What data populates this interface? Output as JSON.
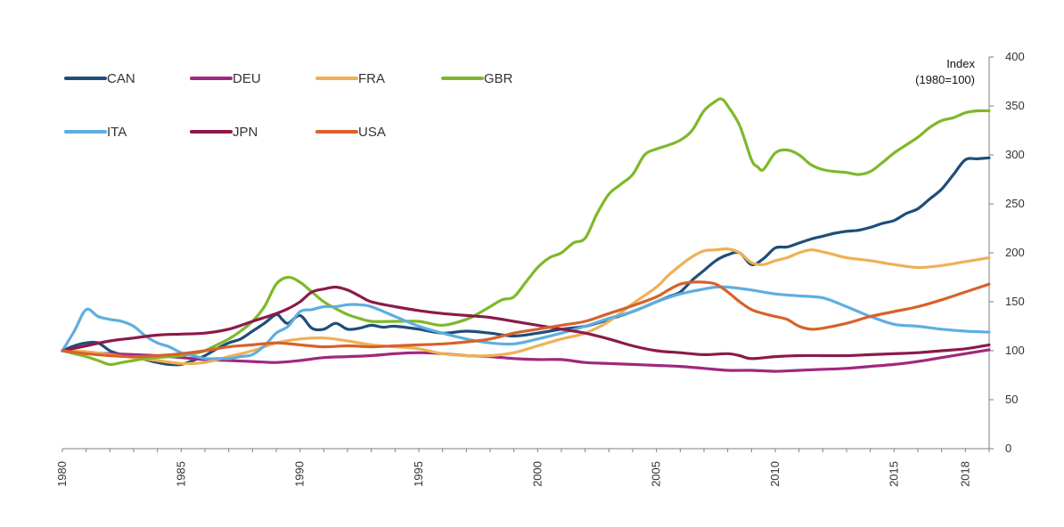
{
  "chart_data": {
    "type": "line",
    "title": "",
    "xlabel": "",
    "ylabel": [
      "Index",
      "(1980=100)"
    ],
    "xlim": [
      1980,
      2019
    ],
    "ylim": [
      0,
      400
    ],
    "yticks": [
      0,
      50,
      100,
      150,
      200,
      250,
      300,
      350,
      400
    ],
    "xticks": [
      "1980",
      "1985",
      "1990",
      "1995",
      "2000",
      "2005",
      "2010",
      "2015",
      "2018"
    ],
    "grid": false,
    "legend_position": "top-left",
    "series": [
      {
        "name": "CAN",
        "color": "#1f4e79",
        "x": [
          1980,
          1980.5,
          1981,
          1981.5,
          1982,
          1982.5,
          1983,
          1983.5,
          1984,
          1984.5,
          1985,
          1985.5,
          1986,
          1986.5,
          1987,
          1987.5,
          1988,
          1988.5,
          1989,
          1989.25,
          1989.5,
          1990,
          1990.5,
          1991,
          1991.5,
          1992,
          1992.5,
          1993,
          1993.5,
          1994,
          1995,
          1996,
          1997,
          1998,
          1999,
          2000,
          2001,
          2002,
          2003,
          2004,
          2005,
          2005.5,
          2006,
          2006.5,
          2007,
          2007.5,
          2008,
          2008.5,
          2009,
          2009.5,
          2010,
          2010.5,
          2011,
          2011.5,
          2012,
          2012.5,
          2013,
          2013.5,
          2014,
          2014.5,
          2015,
          2015.5,
          2016,
          2016.5,
          2017,
          2017.5,
          2018,
          2018.5,
          2019
        ],
        "y": [
          100,
          105,
          108,
          108,
          100,
          96,
          94,
          91,
          88,
          86,
          86,
          90,
          95,
          102,
          108,
          112,
          120,
          128,
          137,
          132,
          128,
          136,
          123,
          122,
          128,
          122,
          123,
          126,
          124,
          125,
          122,
          118,
          120,
          118,
          115,
          118,
          122,
          125,
          132,
          140,
          150,
          155,
          160,
          172,
          182,
          192,
          198,
          200,
          188,
          194,
          205,
          206,
          210,
          214,
          217,
          220,
          222,
          223,
          226,
          230,
          233,
          240,
          245,
          255,
          265,
          280,
          295,
          296,
          297
        ]
      },
      {
        "name": "DEU",
        "color": "#a0287d",
        "x": [
          1980,
          1981,
          1982,
          1983,
          1984,
          1985,
          1986,
          1987,
          1988,
          1989,
          1990,
          1991,
          1992,
          1993,
          1994,
          1995,
          1996,
          1997,
          1998,
          1999,
          2000,
          2001,
          2002,
          2003,
          2004,
          2005,
          2006,
          2007,
          2008,
          2009,
          2010,
          2011,
          2012,
          2013,
          2014,
          2015,
          2016,
          2017,
          2018,
          2019
        ],
        "y": [
          100,
          98,
          97,
          96,
          95,
          93,
          91,
          90,
          89,
          88,
          90,
          93,
          94,
          95,
          97,
          98,
          97,
          95,
          94,
          92,
          91,
          91,
          88,
          87,
          86,
          85,
          84,
          82,
          80,
          80,
          79,
          80,
          81,
          82,
          84,
          86,
          89,
          93,
          97,
          101
        ]
      },
      {
        "name": "FRA",
        "color": "#eeb155",
        "x": [
          1980,
          1981,
          1982,
          1983,
          1984,
          1985,
          1986,
          1987,
          1988,
          1989,
          1990,
          1991,
          1992,
          1993,
          1994,
          1995,
          1996,
          1997,
          1998,
          1999,
          2000,
          2001,
          2002,
          2003,
          2004,
          2005,
          2005.5,
          2006,
          2006.5,
          2007,
          2007.5,
          2008,
          2008.5,
          2009,
          2009.5,
          2010,
          2010.5,
          2011,
          2011.5,
          2012,
          2012.5,
          2013,
          2014,
          2015,
          2016,
          2017,
          2018,
          2019
        ],
        "y": [
          100,
          99,
          96,
          93,
          90,
          87,
          88,
          94,
          100,
          108,
          112,
          113,
          110,
          106,
          104,
          102,
          97,
          95,
          95,
          98,
          105,
          112,
          118,
          130,
          148,
          165,
          177,
          187,
          196,
          202,
          203,
          204,
          200,
          190,
          188,
          192,
          195,
          200,
          203,
          201,
          198,
          195,
          192,
          188,
          185,
          187,
          191,
          195
        ]
      },
      {
        "name": "GBR",
        "color": "#7fb82a",
        "x": [
          1980,
          1980.5,
          1981,
          1981.5,
          1982,
          1982.5,
          1983,
          1983.5,
          1984,
          1984.5,
          1985,
          1985.5,
          1986,
          1986.5,
          1987,
          1987.5,
          1988,
          1988.5,
          1989,
          1989.5,
          1990,
          1990.5,
          1991,
          1991.5,
          1992,
          1992.5,
          1993,
          1994,
          1995,
          1996,
          1997,
          1997.5,
          1998,
          1998.5,
          1999,
          1999.5,
          2000,
          2000.5,
          2001,
          2001.5,
          2002,
          2002.5,
          2003,
          2003.5,
          2004,
          2004.5,
          2005,
          2005.5,
          2006,
          2006.5,
          2007,
          2007.5,
          2007.75,
          2008,
          2008.5,
          2009,
          2009.25,
          2009.5,
          2010,
          2010.5,
          2011,
          2011.5,
          2012,
          2012.5,
          2013,
          2013.5,
          2014,
          2014.5,
          2015,
          2015.5,
          2016,
          2016.5,
          2017,
          2017.5,
          2018,
          2018.5,
          2019
        ],
        "y": [
          100,
          97,
          94,
          90,
          86,
          88,
          90,
          92,
          93,
          94,
          95,
          97,
          100,
          106,
          112,
          120,
          130,
          145,
          168,
          175,
          170,
          160,
          150,
          143,
          137,
          133,
          130,
          130,
          130,
          126,
          132,
          138,
          145,
          152,
          155,
          170,
          185,
          195,
          200,
          210,
          215,
          240,
          260,
          270,
          280,
          300,
          306,
          310,
          315,
          325,
          345,
          355,
          357,
          350,
          330,
          295,
          288,
          285,
          302,
          305,
          300,
          290,
          285,
          283,
          282,
          280,
          283,
          292,
          302,
          310,
          318,
          328,
          335,
          338,
          343,
          345,
          345
        ]
      },
      {
        "name": "ITA",
        "color": "#5eaee0",
        "x": [
          1980,
          1980.5,
          1981,
          1981.5,
          1982,
          1982.5,
          1983,
          1983.5,
          1984,
          1984.5,
          1985,
          1985.5,
          1986,
          1986.5,
          1987,
          1987.5,
          1988,
          1988.5,
          1989,
          1989.5,
          1990,
          1990.5,
          1991,
          1991.5,
          1992,
          1992.5,
          1993,
          1994,
          1995,
          1996,
          1997,
          1998,
          1999,
          2000,
          2001,
          2002,
          2003,
          2004,
          2005,
          2006,
          2007,
          2007.5,
          2008,
          2009,
          2010,
          2011,
          2012,
          2013,
          2014,
          2015,
          2016,
          2017,
          2018,
          2019
        ],
        "y": [
          100,
          120,
          142,
          135,
          132,
          130,
          125,
          115,
          108,
          104,
          98,
          95,
          92,
          92,
          92,
          94,
          96,
          105,
          118,
          125,
          140,
          142,
          145,
          145,
          147,
          147,
          145,
          135,
          125,
          118,
          112,
          108,
          107,
          112,
          118,
          125,
          133,
          140,
          150,
          158,
          163,
          165,
          165,
          162,
          158,
          156,
          154,
          145,
          135,
          127,
          125,
          122,
          120,
          119
        ]
      },
      {
        "name": "JPN",
        "color": "#8b1a4a",
        "x": [
          1980,
          1981,
          1982,
          1983,
          1984,
          1985,
          1986,
          1987,
          1988,
          1989,
          1989.5,
          1990,
          1990.5,
          1991,
          1991.5,
          1992,
          1992.5,
          1993,
          1994,
          1995,
          1996,
          1997,
          1998,
          1999,
          2000,
          2001,
          2002,
          2003,
          2004,
          2005,
          2006,
          2007,
          2008,
          2008.5,
          2009,
          2010,
          2011,
          2012,
          2013,
          2014,
          2015,
          2016,
          2017,
          2018,
          2019
        ],
        "y": [
          100,
          105,
          110,
          113,
          116,
          117,
          118,
          122,
          130,
          138,
          143,
          150,
          160,
          163,
          165,
          162,
          156,
          150,
          145,
          141,
          138,
          136,
          134,
          130,
          126,
          122,
          118,
          112,
          105,
          100,
          98,
          96,
          97,
          95,
          92,
          94,
          95,
          95,
          95,
          96,
          97,
          98,
          100,
          102,
          106
        ]
      },
      {
        "name": "USA",
        "color": "#d8612a",
        "x": [
          1980,
          1981,
          1982,
          1983,
          1984,
          1985,
          1986,
          1987,
          1988,
          1989,
          1990,
          1991,
          1992,
          1993,
          1994,
          1995,
          1996,
          1997,
          1998,
          1999,
          2000,
          2001,
          2002,
          2003,
          2004,
          2005,
          2005.5,
          2006,
          2006.5,
          2007,
          2007.5,
          2008,
          2008.5,
          2009,
          2009.5,
          2010,
          2010.5,
          2011,
          2011.5,
          2012,
          2013,
          2014,
          2015,
          2016,
          2017,
          2018,
          2019
        ],
        "y": [
          100,
          97,
          95,
          94,
          95,
          97,
          100,
          104,
          106,
          108,
          106,
          104,
          105,
          104,
          105,
          106,
          107,
          109,
          112,
          118,
          122,
          126,
          130,
          138,
          146,
          155,
          162,
          168,
          170,
          170,
          168,
          160,
          150,
          142,
          138,
          135,
          132,
          125,
          122,
          123,
          128,
          135,
          140,
          145,
          152,
          160,
          168
        ]
      }
    ]
  }
}
